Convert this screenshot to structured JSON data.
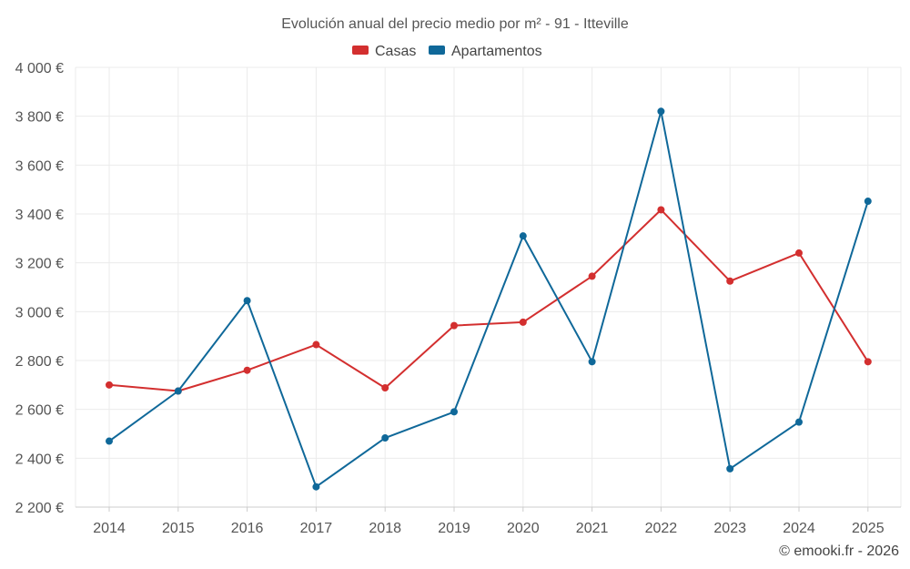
{
  "chart_data": {
    "type": "line",
    "title": "Evolución anual del precio medio por m² - 91 - Itteville",
    "categories": [
      "2014",
      "2015",
      "2016",
      "2017",
      "2018",
      "2019",
      "2020",
      "2021",
      "2022",
      "2023",
      "2024",
      "2025"
    ],
    "series": [
      {
        "name": "Casas",
        "color": "#d32f2f",
        "values": [
          2700,
          2675,
          2760,
          2865,
          2688,
          2943,
          2957,
          3145,
          3417,
          3125,
          3240,
          2795
        ]
      },
      {
        "name": "Apartamentos",
        "color": "#0f6899",
        "values": [
          2470,
          2675,
          3045,
          2283,
          2483,
          2590,
          3310,
          2795,
          3820,
          2357,
          2548,
          3452
        ]
      }
    ],
    "ylim": [
      2200,
      4000
    ],
    "ytick_labels": [
      "2 200 €",
      "2 400 €",
      "2 600 €",
      "2 800 €",
      "3 000 €",
      "3 200 €",
      "3 400 €",
      "3 600 €",
      "3 800 €",
      "4 000 €"
    ],
    "xlabel": "",
    "ylabel": "",
    "grid": true,
    "legend_position": "top-center"
  },
  "credit": "© emooki.fr - 2026"
}
